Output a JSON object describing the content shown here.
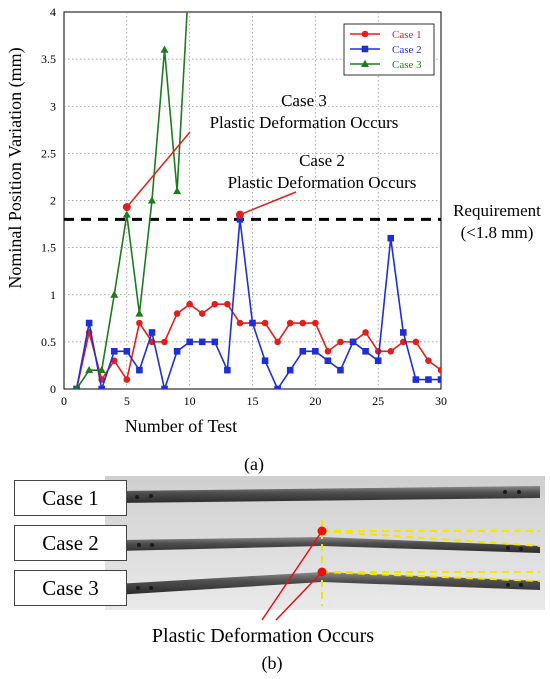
{
  "chart_data": {
    "type": "line",
    "xlabel": "Number of Test",
    "ylabel": "Nominal Position Variation (mm)",
    "xlim": [
      0,
      30
    ],
    "ylim": [
      0,
      4
    ],
    "x_ticks": [
      0,
      5,
      10,
      15,
      20,
      25,
      30
    ],
    "y_ticks": [
      0,
      0.5,
      1,
      1.5,
      2,
      2.5,
      3,
      3.5,
      4
    ],
    "grid": true,
    "legend": "top-right",
    "series": [
      {
        "name": "Case 1",
        "color": "#e0201c",
        "marker": "circle",
        "x": [
          1,
          2,
          3,
          4,
          5,
          6,
          7,
          8,
          9,
          10,
          11,
          12,
          13,
          14,
          15,
          16,
          17,
          18,
          19,
          20,
          21,
          22,
          23,
          24,
          25,
          26,
          27,
          28,
          29,
          30
        ],
        "values": [
          0,
          0.6,
          0.1,
          0.3,
          0.1,
          0.7,
          0.5,
          0.5,
          0.8,
          0.9,
          0.8,
          0.9,
          0.9,
          0.7,
          0.7,
          0.7,
          0.5,
          0.7,
          0.7,
          0.7,
          0.4,
          0.5,
          0.5,
          0.6,
          0.4,
          0.4,
          0.5,
          0.5,
          0.3,
          0.2
        ]
      },
      {
        "name": "Case 2",
        "color": "#1f2fd6",
        "marker": "square",
        "x": [
          1,
          2,
          3,
          4,
          5,
          6,
          7,
          8,
          9,
          10,
          11,
          12,
          13,
          14,
          15,
          16,
          17,
          18,
          19,
          20,
          21,
          22,
          23,
          24,
          25,
          26,
          27,
          28,
          29,
          30
        ],
        "values": [
          0,
          0.7,
          0,
          0.4,
          0.4,
          0.2,
          0.6,
          0,
          0.4,
          0.5,
          0.5,
          0.5,
          0.2,
          1.8,
          0.7,
          0.3,
          0,
          0.2,
          0.4,
          0.4,
          0.3,
          0.2,
          0.5,
          0.4,
          0.3,
          1.6,
          0.6,
          0.1,
          0.1,
          0.1
        ]
      },
      {
        "name": "Case 3",
        "color": "#1e7b1e",
        "marker": "triangle",
        "x": [
          1,
          2,
          3,
          4,
          5,
          6,
          7,
          8,
          9,
          10
        ],
        "values": [
          0,
          0.2,
          0.2,
          1.0,
          1.85,
          0.8,
          2.0,
          3.6,
          2.1,
          4.5
        ]
      }
    ],
    "requirement": {
      "value": 1.8,
      "label_line1": "Requirement",
      "label_line2": "(<1.8 mm)"
    },
    "annotations": [
      {
        "line1": "Case 3",
        "line2": "Plastic Deformation Occurs",
        "point_x": 5,
        "point_y": 1.93
      },
      {
        "line1": "Case 2",
        "line2": "Plastic Deformation Occurs",
        "point_x": 14,
        "point_y": 1.85
      }
    ]
  },
  "caption_a": "(a)",
  "caption_b": "(b)",
  "photo": {
    "case_labels": [
      "Case 1",
      "Case 2",
      "Case 3"
    ],
    "annotation": "Plastic Deformation Occurs"
  }
}
